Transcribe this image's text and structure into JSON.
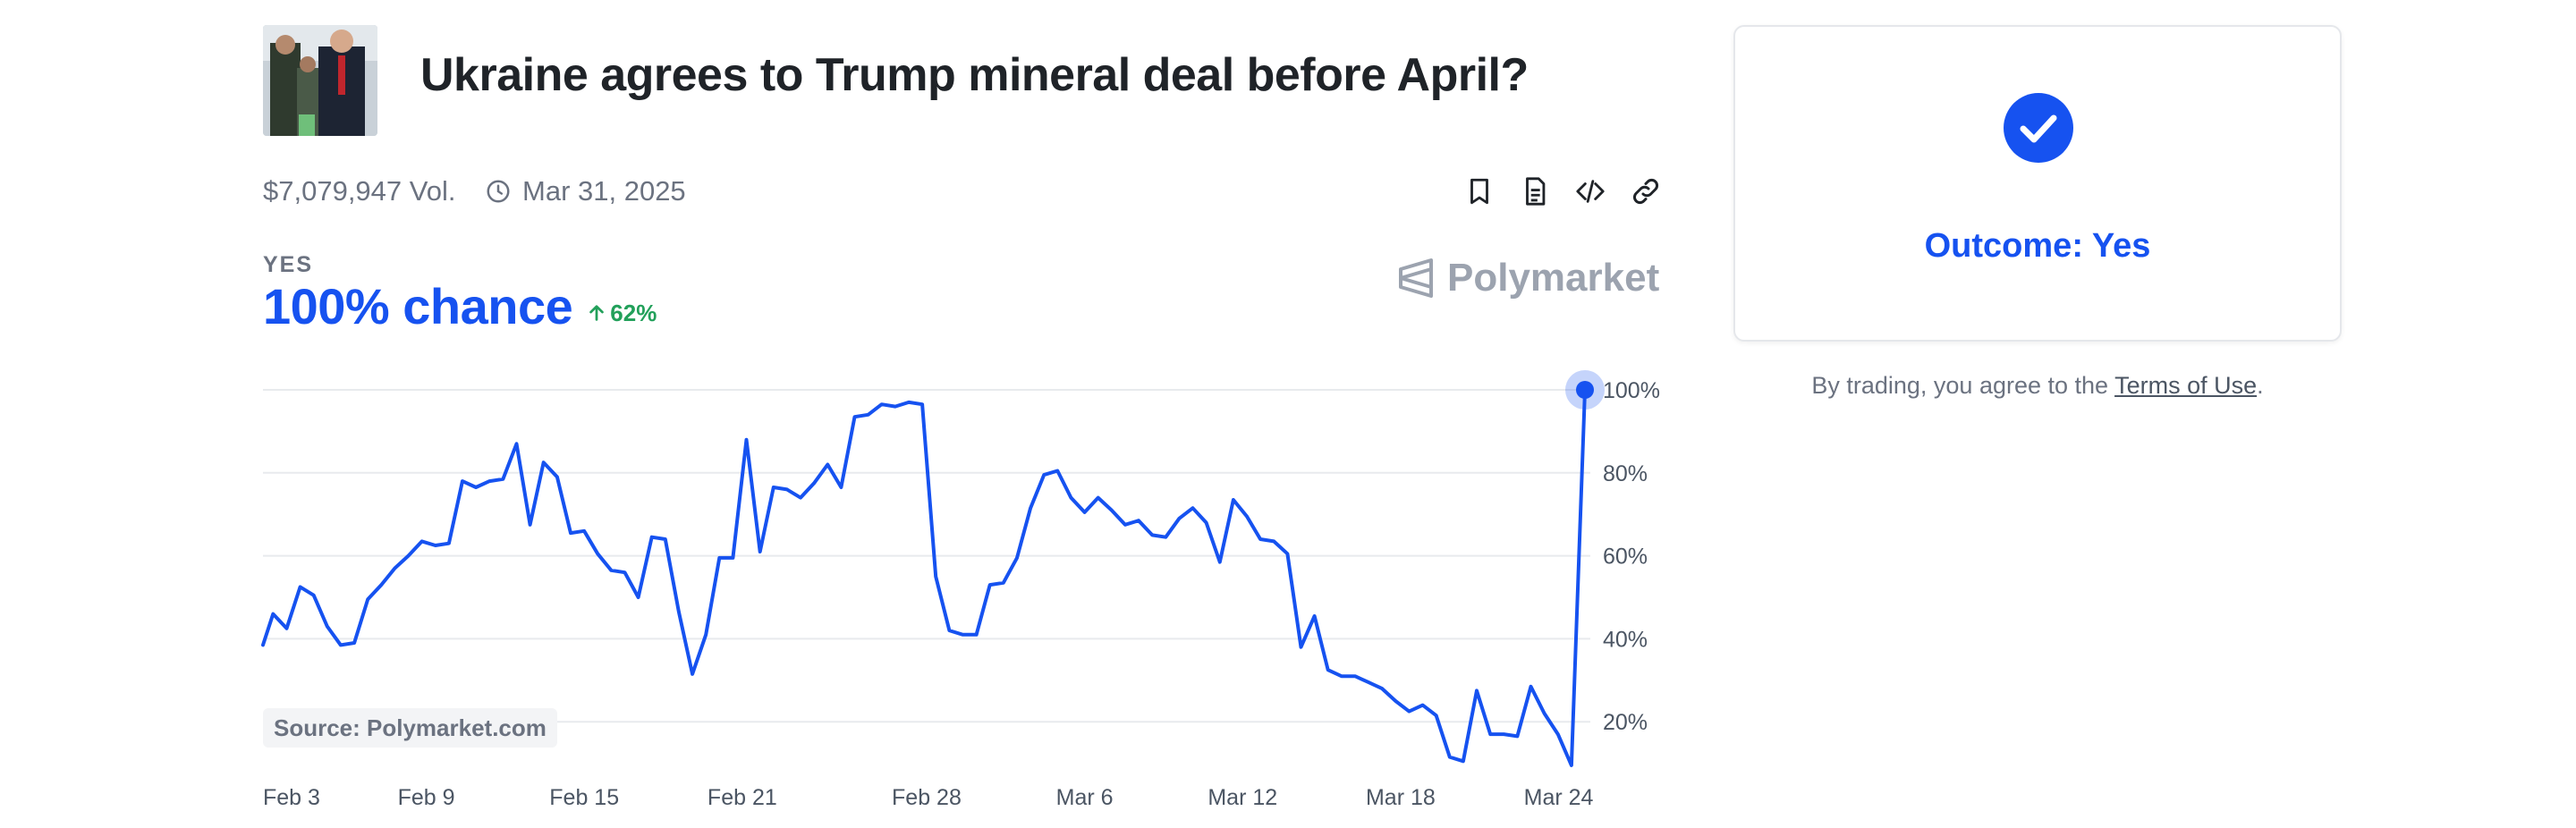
{
  "market": {
    "title": "Ukraine agrees to Trump mineral deal before April?",
    "volume": "$7,079,947 Vol.",
    "end_date": "Mar 31, 2025",
    "outcome_label": "YES",
    "chance": "100% chance",
    "delta": "62%",
    "brand": "Polymarket",
    "source": "Source: Polymarket.com"
  },
  "actions": [
    {
      "name": "bookmark-icon"
    },
    {
      "name": "document-icon"
    },
    {
      "name": "embed-code-icon"
    },
    {
      "name": "link-icon"
    }
  ],
  "resolution": {
    "outcome": "Outcome: Yes",
    "terms_prefix": "By trading, you agree to the ",
    "terms_link": "Terms of Use",
    "terms_suffix": "."
  },
  "colors": {
    "accent": "#1652f0",
    "up": "#22a05a",
    "muted": "#6b7280"
  },
  "chart_data": {
    "type": "line",
    "ylim": [
      0,
      100
    ],
    "yticks": [
      20,
      40,
      60,
      80,
      100
    ],
    "ytick_labels": [
      "20%",
      "40%",
      "60%",
      "80%",
      "100%"
    ],
    "xticks": [
      {
        "t": 1,
        "label": "Feb 3"
      },
      {
        "t": 7,
        "label": "Feb 9"
      },
      {
        "t": 13,
        "label": "Feb 15"
      },
      {
        "t": 19,
        "label": "Feb 21"
      },
      {
        "t": 26,
        "label": "Feb 28"
      },
      {
        "t": 32,
        "label": "Mar 6"
      },
      {
        "t": 38,
        "label": "Mar 12"
      },
      {
        "t": 44,
        "label": "Mar 18"
      },
      {
        "t": 50,
        "label": "Mar 24"
      }
    ],
    "t_range": [
      0.8,
      51
    ],
    "grid": true,
    "series": [
      {
        "color": "#1652f0",
        "points": [
          [
            0.8,
            38.5
          ],
          [
            1.1,
            46
          ],
          [
            1.5,
            42.5
          ],
          [
            1.9,
            52.5
          ],
          [
            2.3,
            50.5
          ],
          [
            2.7,
            43
          ],
          [
            3.1,
            38.5
          ],
          [
            3.5,
            39
          ],
          [
            3.9,
            49.5
          ],
          [
            4.3,
            53
          ],
          [
            4.7,
            57
          ],
          [
            5.1,
            60
          ],
          [
            5.5,
            63.5
          ],
          [
            5.9,
            62.5
          ],
          [
            6.3,
            63
          ],
          [
            6.7,
            78
          ],
          [
            7.1,
            76.5
          ],
          [
            7.5,
            78
          ],
          [
            7.9,
            78.5
          ],
          [
            8.3,
            87
          ],
          [
            8.7,
            67.5
          ],
          [
            9.1,
            82.5
          ],
          [
            9.5,
            79
          ],
          [
            9.9,
            65.5
          ],
          [
            10.3,
            66
          ],
          [
            10.7,
            60.5
          ],
          [
            11.1,
            56.5
          ],
          [
            11.5,
            56
          ],
          [
            11.9,
            50
          ],
          [
            12.3,
            64.5
          ],
          [
            12.7,
            64
          ],
          [
            13.1,
            46.5
          ],
          [
            13.5,
            31.5
          ],
          [
            13.9,
            41
          ],
          [
            14.3,
            59.5
          ],
          [
            14.7,
            59.5
          ],
          [
            15.1,
            88
          ],
          [
            15.5,
            61
          ],
          [
            15.9,
            76.5
          ],
          [
            16.3,
            76
          ],
          [
            16.7,
            74
          ],
          [
            17.1,
            77.5
          ],
          [
            17.5,
            82
          ],
          [
            17.9,
            76.5
          ],
          [
            18.3,
            93.5
          ],
          [
            18.7,
            94
          ],
          [
            19.1,
            96.5
          ],
          [
            19.5,
            96
          ],
          [
            19.9,
            97
          ],
          [
            20.3,
            96.5
          ],
          [
            20.7,
            55
          ],
          [
            21.1,
            42
          ],
          [
            21.5,
            41
          ],
          [
            21.9,
            41
          ],
          [
            22.3,
            53
          ],
          [
            22.7,
            53.5
          ],
          [
            23.1,
            59.5
          ],
          [
            23.5,
            71.5
          ],
          [
            23.9,
            79.5
          ],
          [
            24.3,
            80.5
          ],
          [
            24.7,
            74
          ],
          [
            25.1,
            70.5
          ],
          [
            25.5,
            74
          ],
          [
            25.9,
            71
          ],
          [
            26.3,
            67.5
          ],
          [
            26.7,
            68.5
          ],
          [
            27.1,
            65
          ],
          [
            27.5,
            64.5
          ],
          [
            27.9,
            69
          ],
          [
            28.3,
            71.5
          ],
          [
            28.7,
            68
          ],
          [
            29.1,
            58.5
          ],
          [
            29.5,
            73.5
          ],
          [
            29.9,
            69.5
          ],
          [
            30.3,
            64
          ],
          [
            30.7,
            63.5
          ],
          [
            31.1,
            60.5
          ],
          [
            31.5,
            38
          ],
          [
            31.9,
            45.5
          ],
          [
            32.3,
            32.5
          ],
          [
            32.7,
            31
          ],
          [
            33.1,
            31
          ],
          [
            33.5,
            29.5
          ],
          [
            33.9,
            28
          ],
          [
            34.3,
            25
          ],
          [
            34.7,
            22.5
          ],
          [
            35.1,
            24
          ],
          [
            35.5,
            21.5
          ],
          [
            35.9,
            11.5
          ],
          [
            36.3,
            10.5
          ],
          [
            36.7,
            27.5
          ],
          [
            37.1,
            17
          ],
          [
            37.5,
            17
          ],
          [
            37.9,
            16.5
          ],
          [
            38.3,
            28.5
          ],
          [
            38.7,
            22
          ],
          [
            39.1,
            17
          ],
          [
            39.5,
            9.5
          ],
          [
            39.9,
            100
          ]
        ]
      }
    ]
  }
}
